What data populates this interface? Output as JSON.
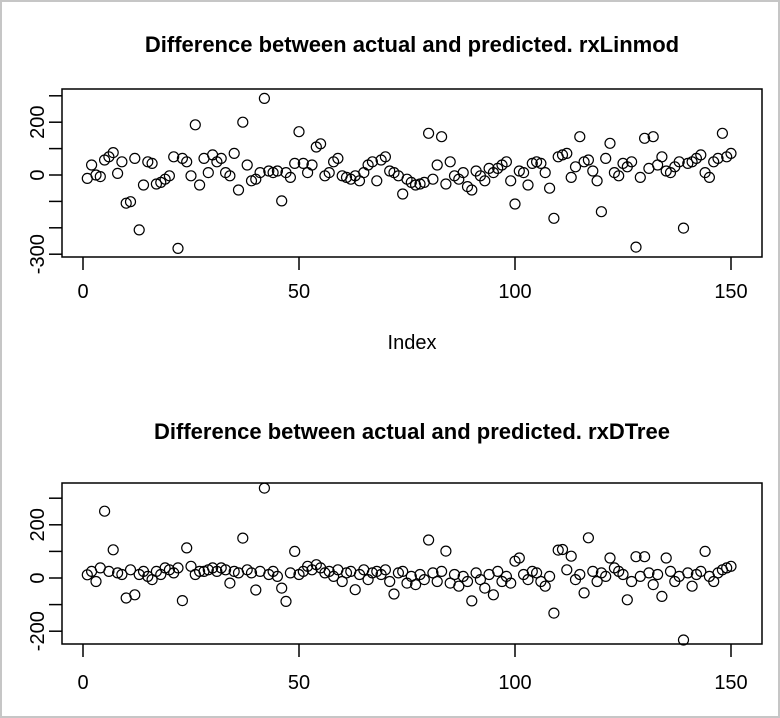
{
  "window": {
    "background": "#ffffff",
    "border_color": "#c6c6c6",
    "foreground": "#000000"
  },
  "chart_data": [
    {
      "type": "scatter",
      "title": "Difference between actual and predicted. rxLinmod",
      "xlabel": "Index",
      "ylabel": "",
      "marker": "open-circle",
      "point_color": "#000000",
      "grid": false,
      "x_start": 1,
      "x_step": 1,
      "n": 150,
      "xlim": [
        -5,
        156
      ],
      "ylim": [
        -311,
        326
      ],
      "xticks": [
        0,
        50,
        100,
        150
      ],
      "yticks": [
        300,
        200,
        100,
        0,
        -100,
        -200,
        -300
      ],
      "ytick_labels": [
        200,
        0,
        -300
      ],
      "values": [
        -13,
        38,
        0,
        -6,
        57,
        69,
        85,
        6,
        50,
        -107,
        -101,
        63,
        -208,
        -38,
        50,
        44,
        -34,
        -28,
        -16,
        -3,
        69,
        -278,
        63,
        50,
        -3,
        190,
        -38,
        63,
        9,
        76,
        50,
        63,
        9,
        -3,
        82,
        -57,
        200,
        38,
        -22,
        -16,
        9,
        290,
        15,
        9,
        15,
        -98,
        9,
        -9,
        44,
        164,
        44,
        9,
        38,
        106,
        118,
        -3,
        9,
        50,
        63,
        -3,
        -9,
        -16,
        -3,
        -22,
        9,
        38,
        50,
        -22,
        57,
        69,
        15,
        9,
        -3,
        -72,
        -16,
        -28,
        -38,
        -34,
        -28,
        158,
        -16,
        38,
        145,
        -34,
        50,
        -3,
        -16,
        9,
        -44,
        -57,
        15,
        -3,
        -22,
        25,
        9,
        25,
        38,
        50,
        -22,
        -110,
        15,
        9,
        -38,
        44,
        50,
        44,
        9,
        -50,
        -164,
        69,
        76,
        82,
        -9,
        31,
        145,
        50,
        57,
        15,
        -22,
        -139,
        63,
        120,
        9,
        -3,
        44,
        31,
        50,
        -273,
        -9,
        139,
        25,
        145,
        38,
        69,
        15,
        9,
        31,
        50,
        -201,
        44,
        50,
        63,
        76,
        9,
        -9,
        50,
        63,
        158,
        69,
        82
      ]
    },
    {
      "type": "scatter",
      "title": "Difference between actual and predicted. rxDTree",
      "xlabel": "",
      "ylabel": "",
      "marker": "open-circle",
      "point_color": "#000000",
      "grid": false,
      "x_start": 1,
      "x_step": 1,
      "n": 150,
      "xlim": [
        -5,
        156
      ],
      "ylim": [
        -244,
        357
      ],
      "xticks": [
        0,
        50,
        100,
        150
      ],
      "yticks": [
        300,
        200,
        100,
        0,
        -100,
        -200
      ],
      "ytick_labels": [
        200,
        0,
        -200
      ],
      "values": [
        12,
        25,
        -13,
        38,
        251,
        25,
        106,
        19,
        13,
        -75,
        31,
        -63,
        13,
        25,
        6,
        -6,
        25,
        13,
        38,
        31,
        19,
        38,
        -85,
        113,
        44,
        13,
        25,
        25,
        31,
        38,
        25,
        38,
        31,
        -19,
        25,
        19,
        150,
        31,
        19,
        -45,
        25,
        338,
        13,
        25,
        6,
        -38,
        -88,
        19,
        100,
        13,
        25,
        44,
        31,
        50,
        38,
        19,
        25,
        6,
        31,
        -13,
        19,
        25,
        -44,
        13,
        31,
        -6,
        19,
        25,
        13,
        31,
        -13,
        -60,
        19,
        25,
        -19,
        6,
        -25,
        13,
        -6,
        143,
        19,
        -13,
        25,
        101,
        -19,
        13,
        -31,
        6,
        -13,
        -86,
        19,
        -6,
        -38,
        13,
        -63,
        25,
        -13,
        6,
        -19,
        63,
        75,
        13,
        -6,
        25,
        19,
        -13,
        -31,
        6,
        -132,
        105,
        107,
        31,
        82,
        -6,
        13,
        -56,
        151,
        25,
        -13,
        19,
        6,
        75,
        38,
        25,
        13,
        -82,
        -13,
        80,
        6,
        80,
        19,
        -25,
        13,
        -69,
        75,
        25,
        -13,
        6,
        -233,
        19,
        -31,
        13,
        25,
        100,
        6,
        -13,
        19,
        31,
        38,
        44
      ]
    }
  ]
}
